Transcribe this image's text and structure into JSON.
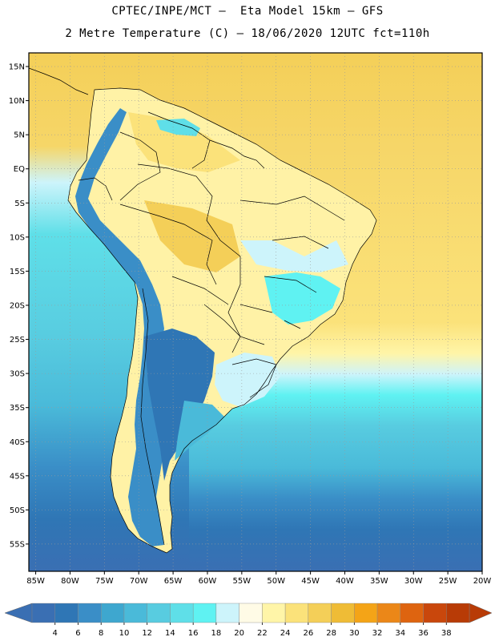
{
  "header": {
    "line1": "CPTEC/INPE/MCT –  Eta Model 15km – GFS",
    "line2": "2 Metre Temperature (C) – 18/06/2020 12UTC fct=110h"
  },
  "map": {
    "lat_range": [
      -59,
      17
    ],
    "lon_range": [
      -86,
      -20
    ],
    "lat_labels": [
      "15N",
      "10N",
      "5N",
      "EQ",
      "5S",
      "10S",
      "15S",
      "20S",
      "25S",
      "30S",
      "35S",
      "40S",
      "45S",
      "50S",
      "55S"
    ],
    "lat_values": [
      15,
      10,
      5,
      0,
      -5,
      -10,
      -15,
      -20,
      -25,
      -30,
      -35,
      -40,
      -45,
      -50,
      -55
    ],
    "lon_labels": [
      "85W",
      "80W",
      "75W",
      "70W",
      "65W",
      "60W",
      "55W",
      "50W",
      "45W",
      "40W",
      "35W",
      "30W",
      "25W",
      "20W"
    ],
    "lon_values": [
      -85,
      -80,
      -75,
      -70,
      -65,
      -60,
      -55,
      -50,
      -45,
      -40,
      -35,
      -30,
      -25,
      -20
    ],
    "field": "2 Metre Temperature",
    "units": "C"
  },
  "colorbar": {
    "labels": [
      "4",
      "6",
      "8",
      "10",
      "12",
      "14",
      "16",
      "18",
      "20",
      "22",
      "24",
      "26",
      "28",
      "30",
      "32",
      "34",
      "36",
      "38"
    ],
    "colors": [
      "#3a6fb3",
      "#2f76b5",
      "#3a8ec7",
      "#3ea7cf",
      "#4abad9",
      "#58cce0",
      "#5fdfe8",
      "#5ff2f2",
      "#cdf4fb",
      "#fffbe6",
      "#fff5a8",
      "#fbe27a",
      "#f4cf58",
      "#efbc36",
      "#f4a417",
      "#eb8718",
      "#de6410",
      "#c9470c",
      "#b83b06"
    ],
    "low_arrow_color": "#3a6fb3",
    "high_arrow_color": "#b83b06"
  }
}
